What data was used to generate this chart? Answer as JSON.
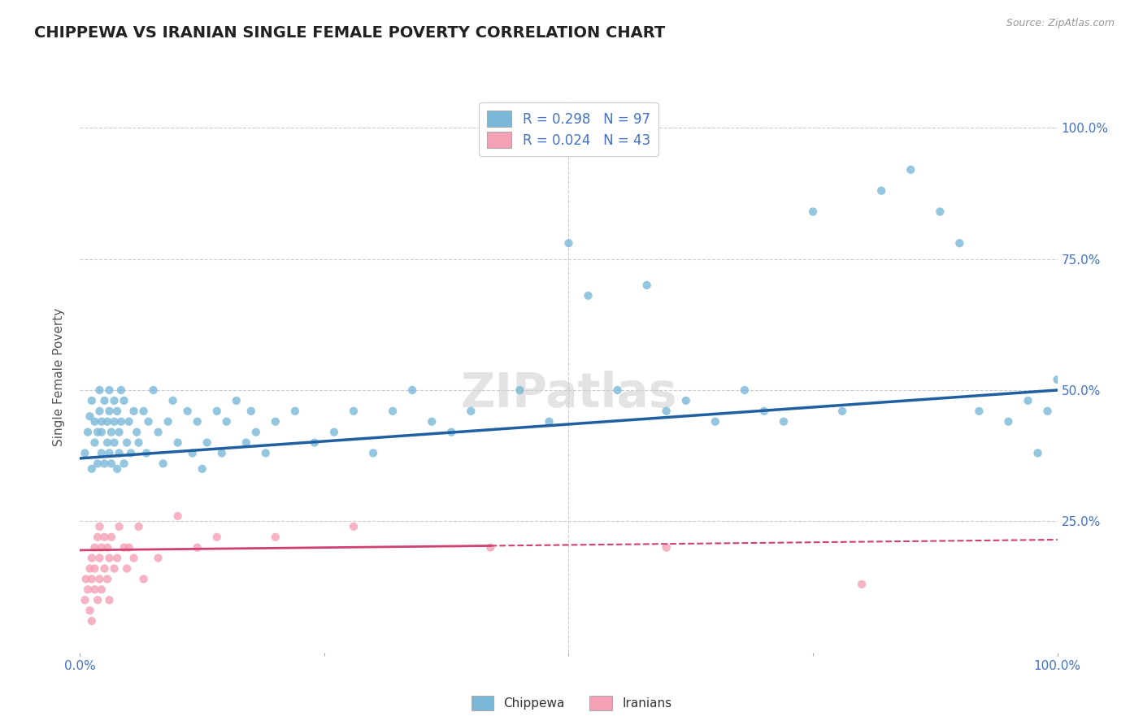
{
  "title": "CHIPPEWA VS IRANIAN SINGLE FEMALE POVERTY CORRELATION CHART",
  "source": "Source: ZipAtlas.com",
  "ylabel": "Single Female Poverty",
  "xlim": [
    0.0,
    1.0
  ],
  "ylim": [
    0.0,
    1.05
  ],
  "legend_r1": "0.298",
  "legend_n1": "97",
  "legend_r2": "0.024",
  "legend_n2": "43",
  "chippewa_color": "#7ab8d9",
  "iranian_color": "#f4a0b5",
  "trend1_color": "#2060a0",
  "trend2_color": "#d04070",
  "background_color": "#ffffff",
  "grid_color": "#cccccc",
  "watermark": "ZIPatlas",
  "title_color": "#222222",
  "title_fontsize": 14,
  "axis_label_color": "#555555",
  "tick_color": "#4472c4",
  "chippewa_x": [
    0.005,
    0.008,
    0.01,
    0.012,
    0.012,
    0.015,
    0.015,
    0.018,
    0.018,
    0.02,
    0.02,
    0.022,
    0.022,
    0.022,
    0.025,
    0.025,
    0.028,
    0.028,
    0.03,
    0.03,
    0.03,
    0.032,
    0.032,
    0.035,
    0.035,
    0.035,
    0.038,
    0.038,
    0.04,
    0.04,
    0.042,
    0.042,
    0.045,
    0.045,
    0.048,
    0.05,
    0.052,
    0.055,
    0.058,
    0.06,
    0.065,
    0.068,
    0.07,
    0.075,
    0.08,
    0.085,
    0.09,
    0.095,
    0.1,
    0.11,
    0.115,
    0.12,
    0.125,
    0.13,
    0.14,
    0.145,
    0.15,
    0.16,
    0.17,
    0.175,
    0.18,
    0.19,
    0.2,
    0.22,
    0.24,
    0.26,
    0.28,
    0.3,
    0.32,
    0.34,
    0.36,
    0.38,
    0.4,
    0.45,
    0.48,
    0.5,
    0.52,
    0.55,
    0.58,
    0.6,
    0.62,
    0.65,
    0.68,
    0.7,
    0.72,
    0.75,
    0.78,
    0.82,
    0.85,
    0.88,
    0.9,
    0.92,
    0.95,
    0.97,
    0.98,
    0.99,
    1.0
  ],
  "chippewa_y": [
    0.38,
    0.42,
    0.45,
    0.35,
    0.48,
    0.4,
    0.44,
    0.36,
    0.42,
    0.46,
    0.5,
    0.38,
    0.42,
    0.44,
    0.36,
    0.48,
    0.4,
    0.44,
    0.38,
    0.46,
    0.5,
    0.42,
    0.36,
    0.44,
    0.48,
    0.4,
    0.35,
    0.46,
    0.38,
    0.42,
    0.5,
    0.44,
    0.36,
    0.48,
    0.4,
    0.44,
    0.38,
    0.46,
    0.42,
    0.4,
    0.46,
    0.38,
    0.44,
    0.5,
    0.42,
    0.36,
    0.44,
    0.48,
    0.4,
    0.46,
    0.38,
    0.44,
    0.35,
    0.4,
    0.46,
    0.38,
    0.44,
    0.48,
    0.4,
    0.46,
    0.42,
    0.38,
    0.44,
    0.46,
    0.4,
    0.42,
    0.46,
    0.38,
    0.46,
    0.5,
    0.44,
    0.42,
    0.46,
    0.5,
    0.44,
    0.78,
    0.68,
    0.5,
    0.7,
    0.46,
    0.48,
    0.44,
    0.5,
    0.46,
    0.44,
    0.84,
    0.46,
    0.88,
    0.92,
    0.84,
    0.78,
    0.46,
    0.44,
    0.48,
    0.38,
    0.46,
    0.52
  ],
  "iranian_x": [
    0.005,
    0.006,
    0.008,
    0.01,
    0.01,
    0.012,
    0.012,
    0.012,
    0.015,
    0.015,
    0.015,
    0.018,
    0.018,
    0.02,
    0.02,
    0.02,
    0.022,
    0.022,
    0.025,
    0.025,
    0.028,
    0.028,
    0.03,
    0.03,
    0.032,
    0.035,
    0.038,
    0.04,
    0.045,
    0.048,
    0.05,
    0.055,
    0.06,
    0.065,
    0.08,
    0.1,
    0.12,
    0.14,
    0.2,
    0.28,
    0.42,
    0.6,
    0.8
  ],
  "iranian_y": [
    0.1,
    0.14,
    0.12,
    0.16,
    0.08,
    0.18,
    0.14,
    0.06,
    0.12,
    0.16,
    0.2,
    0.1,
    0.22,
    0.14,
    0.18,
    0.24,
    0.12,
    0.2,
    0.16,
    0.22,
    0.14,
    0.2,
    0.18,
    0.1,
    0.22,
    0.16,
    0.18,
    0.24,
    0.2,
    0.16,
    0.2,
    0.18,
    0.24,
    0.14,
    0.18,
    0.26,
    0.2,
    0.22,
    0.22,
    0.24,
    0.2,
    0.2,
    0.13
  ],
  "trend1_start_y": 0.37,
  "trend1_end_y": 0.5,
  "trend2_start_y": 0.195,
  "trend2_end_y": 0.215,
  "trend2_solid_end_x": 0.42
}
